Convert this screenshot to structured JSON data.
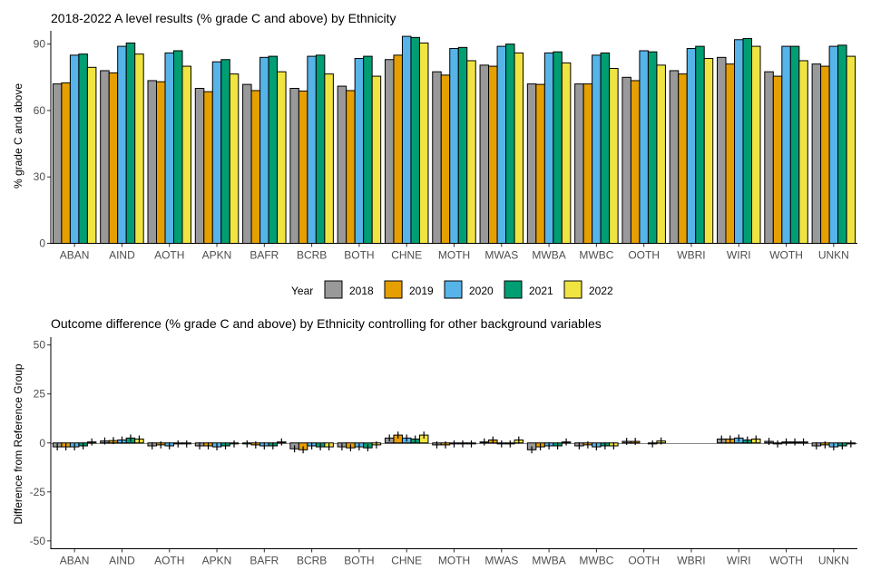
{
  "chart_data": [
    {
      "type": "bar",
      "title": "2018-2022 A level results (% grade C and above) by Ethnicity",
      "xlabel": "",
      "ylabel": "% grade C and above",
      "ylim": [
        0,
        96
      ],
      "yticks": [
        0,
        30,
        60,
        90
      ],
      "categories": [
        "ABAN",
        "AIND",
        "AOTH",
        "APKN",
        "BAFR",
        "BCRB",
        "BOTH",
        "CHNE",
        "MOTH",
        "MWAS",
        "MWBA",
        "MWBC",
        "OOTH",
        "WBRI",
        "WIRI",
        "WOTH",
        "UNKN"
      ],
      "series": [
        {
          "name": "2018",
          "values": [
            72.0,
            78.0,
            73.5,
            70.0,
            71.8,
            70.0,
            71.0,
            83.0,
            77.5,
            80.5,
            72.0,
            72.0,
            75.0,
            78.0,
            84.0,
            77.5,
            81.0
          ]
        },
        {
          "name": "2019",
          "values": [
            72.5,
            77.0,
            73.0,
            68.5,
            69.0,
            68.8,
            69.0,
            85.0,
            76.0,
            80.0,
            71.8,
            72.0,
            73.5,
            76.5,
            81.0,
            75.5,
            80.0
          ]
        },
        {
          "name": "2020",
          "values": [
            85.0,
            89.0,
            86.0,
            82.0,
            84.0,
            84.5,
            83.5,
            93.5,
            88.0,
            89.0,
            86.0,
            85.0,
            87.0,
            88.0,
            92.0,
            89.0,
            89.0
          ]
        },
        {
          "name": "2021",
          "values": [
            85.5,
            90.5,
            87.0,
            83.0,
            84.5,
            85.0,
            84.5,
            93.0,
            88.5,
            90.0,
            86.5,
            86.0,
            86.5,
            89.0,
            92.5,
            89.0,
            89.5
          ]
        },
        {
          "name": "2022",
          "values": [
            79.5,
            85.5,
            80.0,
            76.5,
            77.5,
            76.5,
            75.5,
            90.5,
            82.5,
            86.0,
            81.5,
            79.0,
            80.5,
            83.5,
            89.0,
            82.5,
            84.5
          ]
        }
      ],
      "legend": {
        "title": "Year",
        "position": "bottom"
      },
      "colors": [
        "#999999",
        "#E69F00",
        "#56B4E9",
        "#009E73",
        "#F0E442"
      ]
    },
    {
      "type": "bar",
      "title": "Outcome difference (% grade C and above) by Ethnicity controlling for other background variables",
      "xlabel": "",
      "ylabel": "Difference from Reference Group",
      "ylim": [
        -54,
        54
      ],
      "yticks": [
        -50,
        -25,
        0,
        25,
        50
      ],
      "categories": [
        "ABAN",
        "AIND",
        "AOTH",
        "APKN",
        "BAFR",
        "BCRB",
        "BOTH",
        "CHNE",
        "MOTH",
        "MWAS",
        "MWBA",
        "MWBC",
        "OOTH",
        "WBRI",
        "WIRI",
        "WOTH",
        "UNKN"
      ],
      "series": [
        {
          "name": "2018",
          "values": [
            -2.0,
            1.0,
            -1.5,
            -1.5,
            -0.5,
            -3.0,
            -2.0,
            2.5,
            -1.0,
            0.5,
            -3.5,
            -1.5,
            0.8,
            0,
            2.0,
            0.8,
            -1.5
          ]
        },
        {
          "name": "2019",
          "values": [
            -2.0,
            1.2,
            -1.0,
            -1.5,
            -1.0,
            -3.5,
            -2.5,
            4.0,
            -1.0,
            1.5,
            -2.0,
            -1.0,
            0.8,
            0,
            2.0,
            -0.5,
            -1.0
          ]
        },
        {
          "name": "2020",
          "values": [
            -2.0,
            1.5,
            -1.5,
            -2.0,
            -1.5,
            -1.5,
            -2.0,
            2.5,
            -0.5,
            -0.5,
            -1.5,
            -2.0,
            0,
            0,
            2.5,
            0.5,
            -2.0
          ]
        },
        {
          "name": "2021",
          "values": [
            -1.5,
            2.5,
            -0.5,
            -1.5,
            -1.5,
            -2.0,
            -2.5,
            2.0,
            -0.5,
            -0.5,
            -1.5,
            -1.5,
            -0.5,
            0,
            1.5,
            0.5,
            -1.5
          ]
        },
        {
          "name": "2022",
          "values": [
            0.5,
            2.0,
            -0.5,
            -0.5,
            0.5,
            -2.0,
            -1.0,
            4.0,
            -0.5,
            1.5,
            0.5,
            -1.5,
            1.0,
            0,
            2.0,
            0.5,
            -0.5
          ]
        }
      ],
      "colors": [
        "#999999",
        "#E69F00",
        "#56B4E9",
        "#009E73",
        "#F0E442"
      ]
    }
  ]
}
